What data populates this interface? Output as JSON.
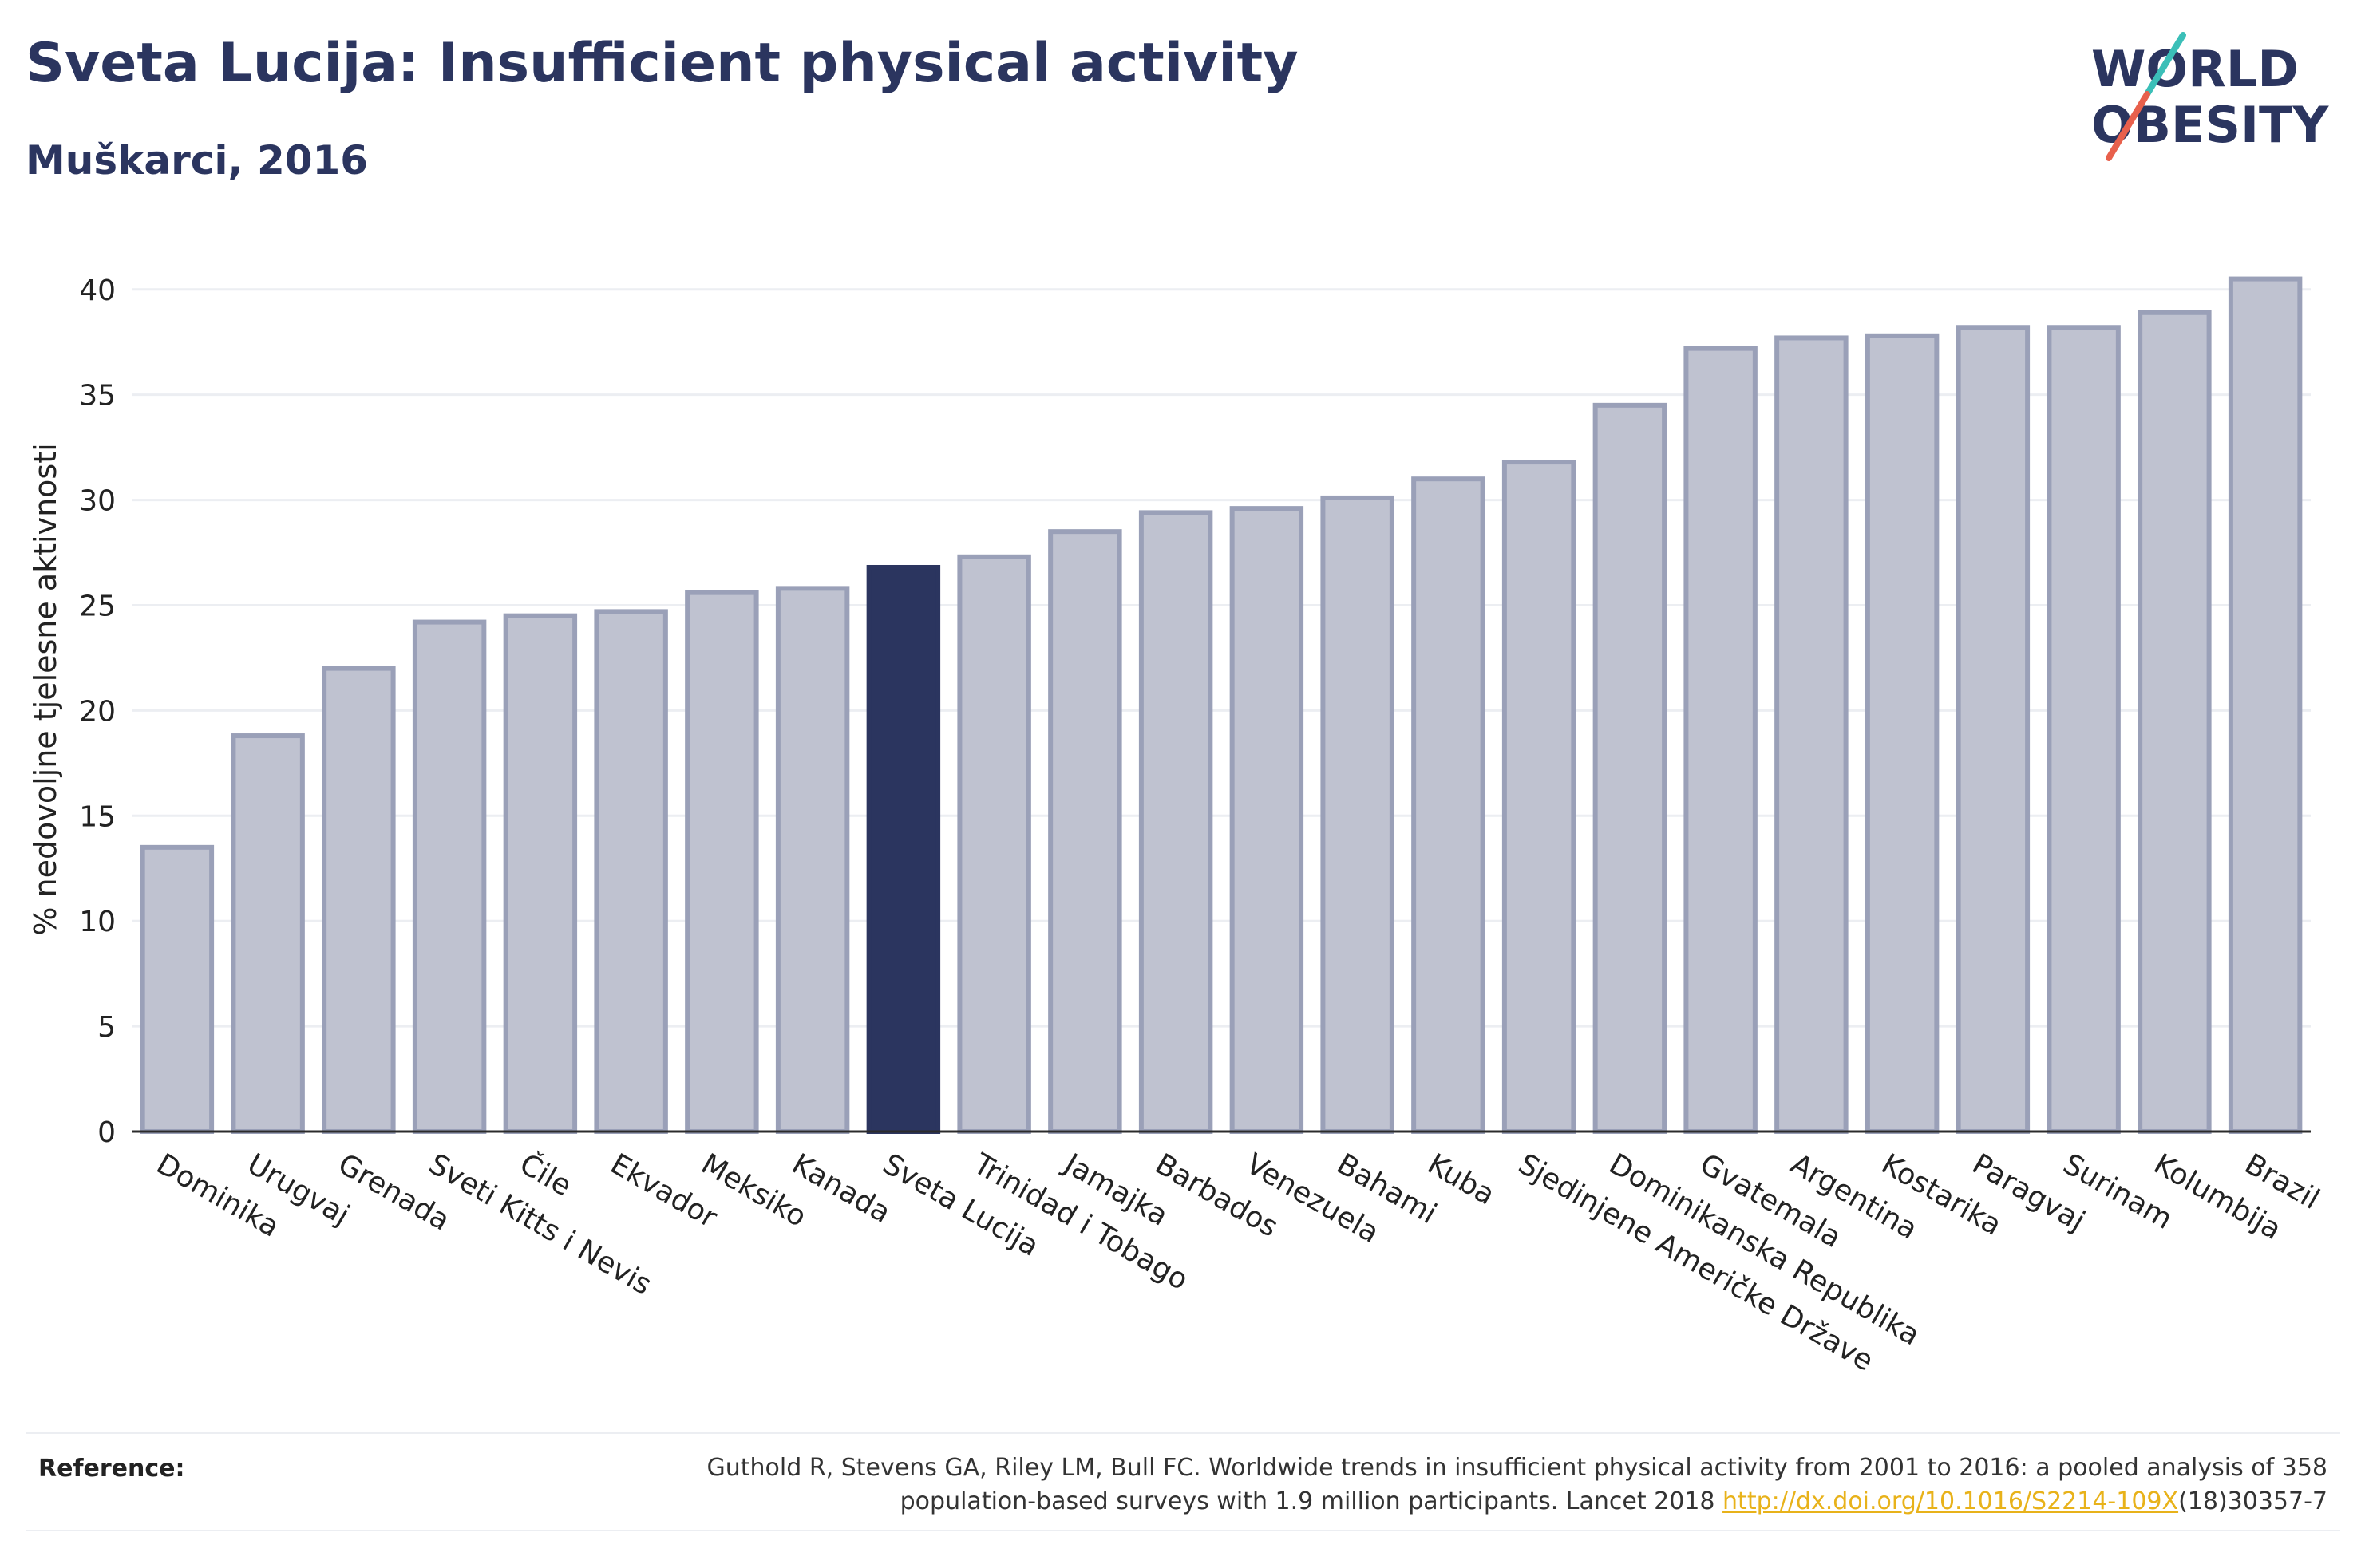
{
  "header": {
    "title": "Sveta Lucija: Insufficient physical activity",
    "subtitle": "Muškarci, 2016"
  },
  "logo": {
    "line1": "WORLD",
    "line2": "OBESITY",
    "colors": {
      "text": "#2b355f",
      "slash_top": "#3bbfb8",
      "slash_bottom": "#e8604c"
    }
  },
  "chart_data": {
    "type": "bar",
    "ylabel": "% nedovoljne tjelesne aktivnosti",
    "ylim": [
      0,
      42
    ],
    "yticks": [
      0,
      5,
      10,
      15,
      20,
      25,
      30,
      35,
      40
    ],
    "grid": true,
    "highlight": "Sveta Lucija",
    "colors": {
      "bar": "#bfc2d0",
      "bar_border": "#9aa0b8",
      "highlight": "#2b355f"
    },
    "categories": [
      "Dominika",
      "Urugvaj",
      "Grenada",
      "Sveti Kitts i Nevis",
      "Čile",
      "Ekvador",
      "Meksiko",
      "Kanada",
      "Sveta Lucija",
      "Trinidad i Tobago",
      "Jamajka",
      "Barbados",
      "Venezuela",
      "Bahami",
      "Kuba",
      "Sjedinjene Američke Države",
      "Dominikanska Republika",
      "Gvatemala",
      "Argentina",
      "Kostarika",
      "Paragvaj",
      "Surinam",
      "Kolumbija",
      "Brazil"
    ],
    "values": [
      13.5,
      18.8,
      22.0,
      24.2,
      24.5,
      24.7,
      25.6,
      25.8,
      26.8,
      27.3,
      28.5,
      29.4,
      29.6,
      30.1,
      31.0,
      31.8,
      34.5,
      37.2,
      37.7,
      37.8,
      38.2,
      38.2,
      38.9,
      40.5
    ]
  },
  "reference": {
    "label": "Reference:",
    "text_line1": "Guthold R, Stevens GA, Riley LM, Bull FC. Worldwide trends in insufficient physical activity from 2001 to 2016: a pooled analysis of 358",
    "text_line2_pre": "population-based surveys with 1.9 million participants. Lancet 2018 ",
    "link": "http://dx.doi.org/10.1016/S2214-109X",
    "text_line2_post": "(18)30357-7"
  }
}
